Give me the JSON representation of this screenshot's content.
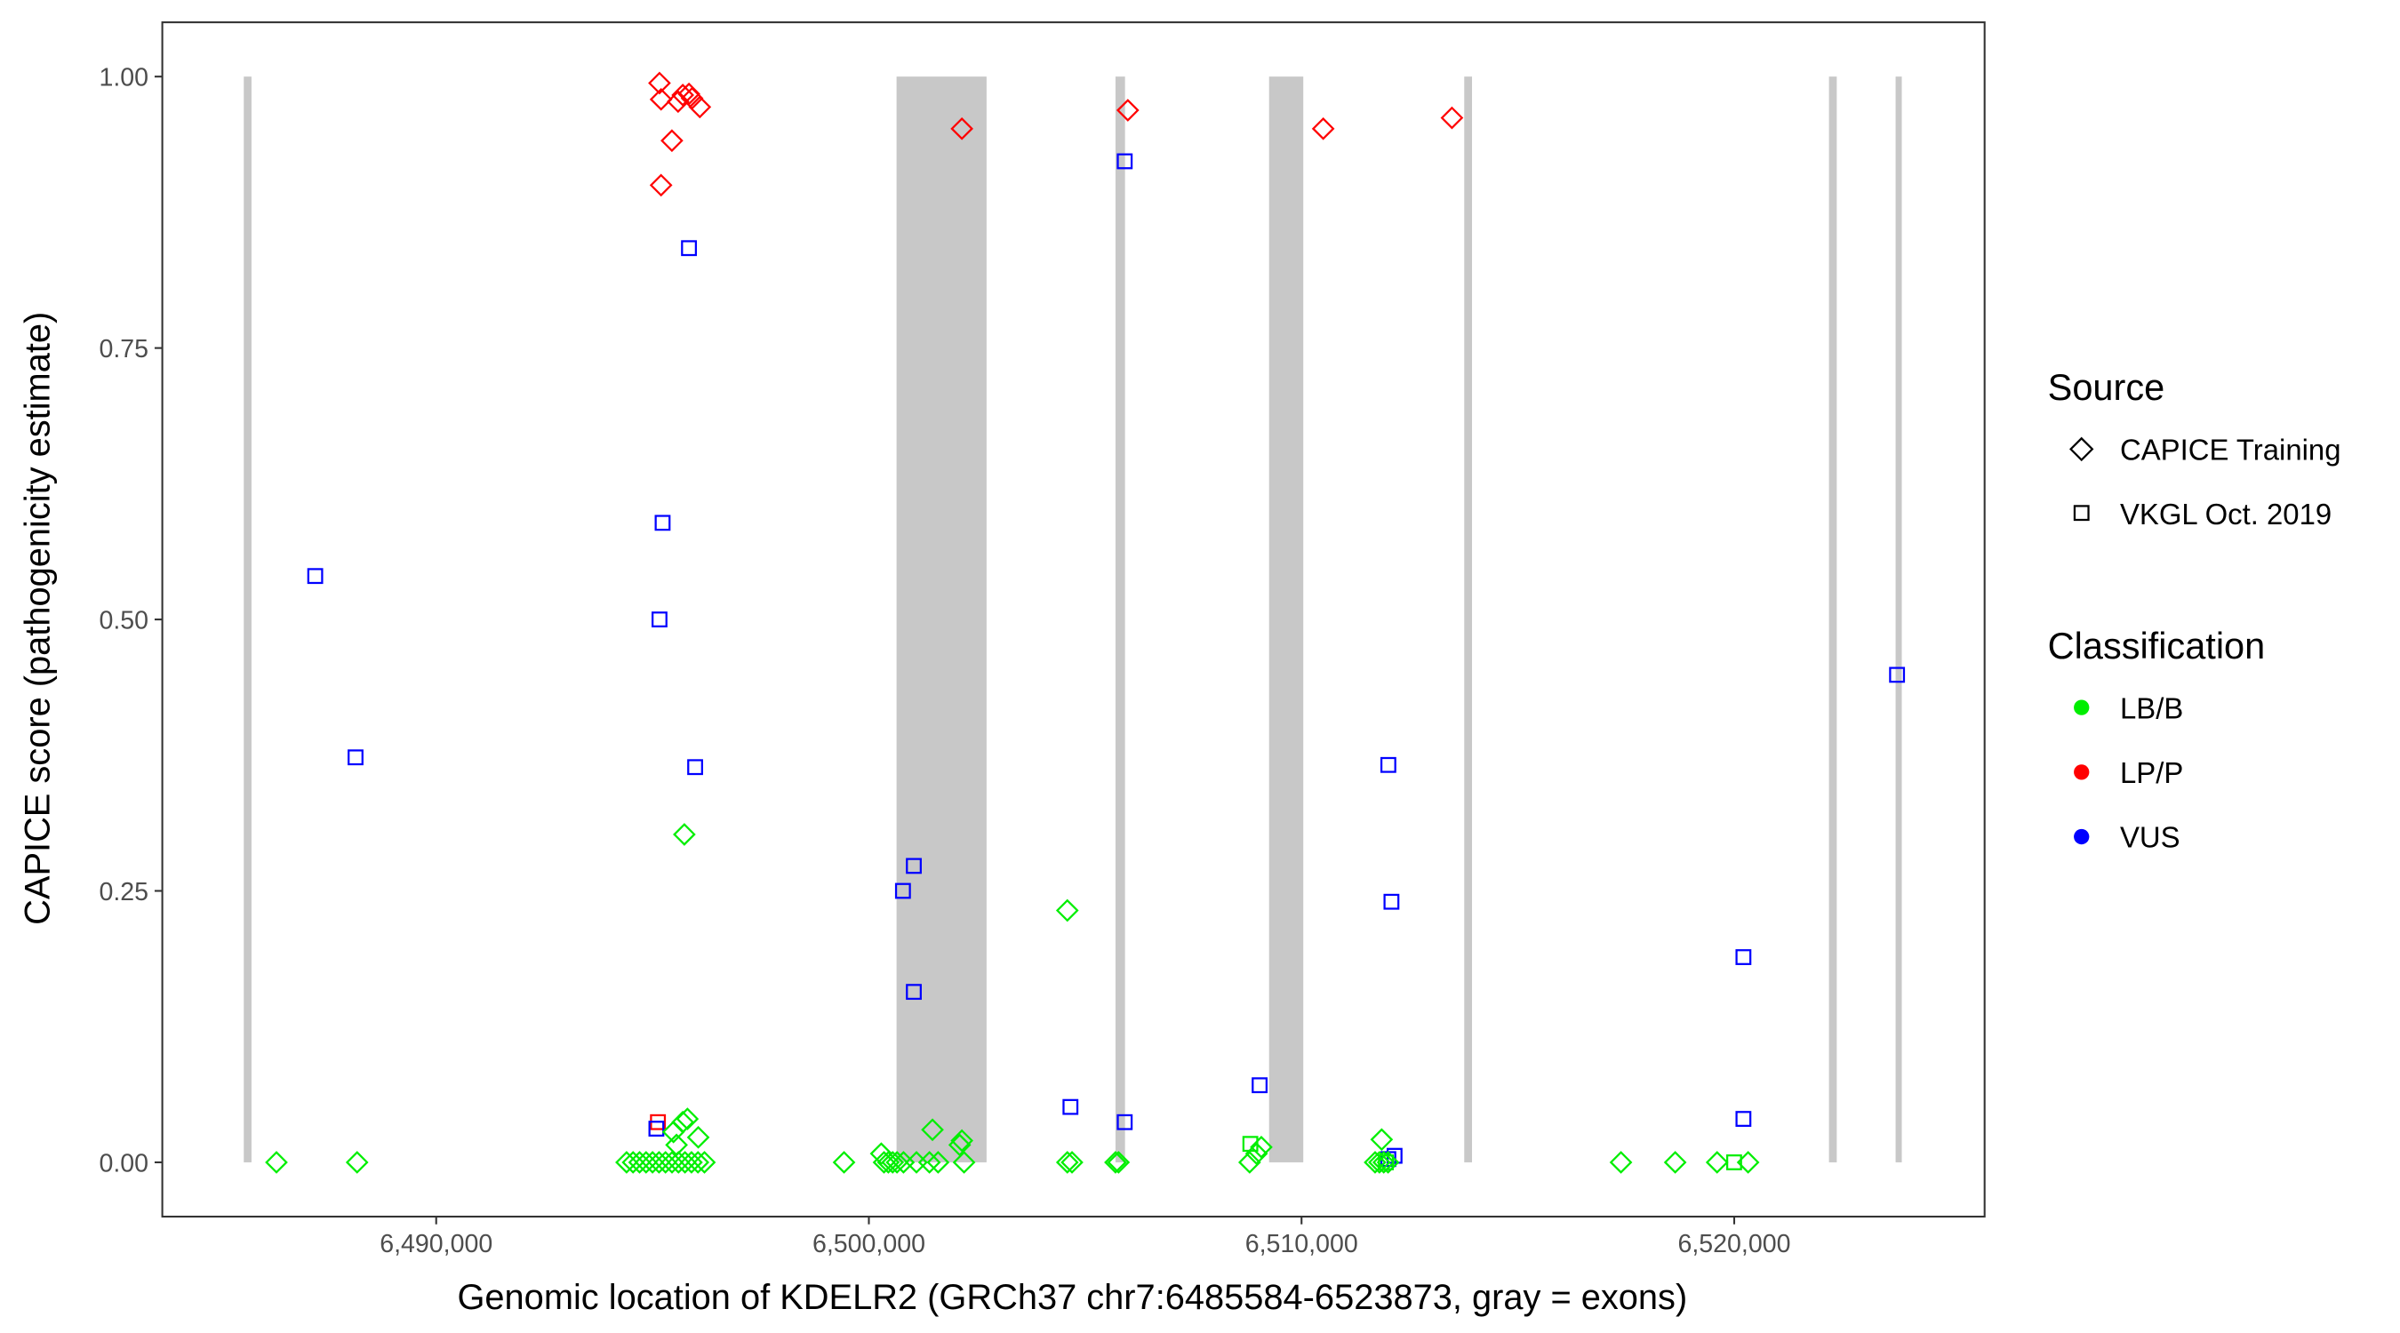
{
  "chart_data": {
    "type": "scatter",
    "title": "",
    "xlabel": "Genomic location of KDELR2 (GRCh37 chr7:6485584-6523873, gray = exons)",
    "ylabel": "CAPICE score (pathogenicity estimate)",
    "xlim": [
      6483670,
      6525787
    ],
    "ylim": [
      -0.05,
      1.05
    ],
    "grid": false,
    "x_ticks": [
      6490000,
      6500000,
      6510000,
      6520000
    ],
    "x_tick_labels": [
      "6,490,000",
      "6,500,000",
      "6,510,000",
      "6,520,000"
    ],
    "y_ticks": [
      0,
      0.25,
      0.5,
      0.75,
      1.0
    ],
    "y_tick_labels": [
      "0.00",
      "0.25",
      "0.50",
      "0.75",
      "1.00"
    ],
    "exons": [
      [
        6485584,
        6485700
      ],
      [
        6500640,
        6502720
      ],
      [
        6505700,
        6505920
      ],
      [
        6509250,
        6510040
      ],
      [
        6513760,
        6513940
      ],
      [
        6522190,
        6522370
      ],
      [
        6523730,
        6523873
      ]
    ],
    "exon_color": "#C8C8C8",
    "legend": {
      "placement": "right",
      "source_title": "Source",
      "sources": [
        {
          "label": "CAPICE Training",
          "shape": "diamond"
        },
        {
          "label": "VKGL Oct. 2019",
          "shape": "square"
        }
      ],
      "classification_title": "Classification",
      "classes": [
        {
          "label": "LB/B",
          "color": "#00EE00"
        },
        {
          "label": "LP/P",
          "color": "#FF0000"
        },
        {
          "label": "VUS",
          "color": "#0000FF"
        }
      ]
    },
    "series": [
      {
        "classification": "LP/P",
        "source": "CAPICE Training",
        "points": [
          [
            6495161,
            0.994
          ],
          [
            6495197,
            0.979
          ],
          [
            6495591,
            0.977
          ],
          [
            6495699,
            0.983
          ],
          [
            6495842,
            0.984
          ],
          [
            6495914,
            0.98
          ],
          [
            6496093,
            0.972
          ],
          [
            6495448,
            0.941
          ],
          [
            6495197,
            0.9
          ],
          [
            6502150,
            0.952
          ],
          [
            6505985,
            0.969
          ],
          [
            6510501,
            0.952
          ],
          [
            6513476,
            0.962
          ]
        ]
      },
      {
        "classification": "LP/P",
        "source": "VKGL Oct. 2019",
        "points": [
          [
            6495125,
            0.037
          ]
        ]
      },
      {
        "classification": "VUS",
        "source": "VKGL Oct. 2019",
        "points": [
          [
            6487204,
            0.54
          ],
          [
            6488136,
            0.373
          ],
          [
            6495842,
            0.842
          ],
          [
            6495233,
            0.589
          ],
          [
            6495161,
            0.5
          ],
          [
            6495985,
            0.364
          ],
          [
            6495089,
            0.031
          ],
          [
            6505913,
            0.922
          ],
          [
            6500788,
            0.25
          ],
          [
            6501039,
            0.273
          ],
          [
            6501039,
            0.157
          ],
          [
            6504659,
            0.051
          ],
          [
            6505913,
            0.037
          ],
          [
            6509031,
            0.071
          ],
          [
            6512006,
            0.366
          ],
          [
            6512078,
            0.24
          ],
          [
            6512006,
            0.003
          ],
          [
            6512150,
            0.006
          ],
          [
            6520213,
            0.189
          ],
          [
            6520213,
            0.04
          ],
          [
            6523763,
            0.449
          ]
        ]
      },
      {
        "classification": "LB/B",
        "source": "CAPICE Training",
        "points": [
          [
            6486308,
            0
          ],
          [
            6488172,
            0
          ],
          [
            6494400,
            0
          ],
          [
            6494550,
            0
          ],
          [
            6494700,
            0
          ],
          [
            6494850,
            0
          ],
          [
            6495000,
            0
          ],
          [
            6495150,
            0
          ],
          [
            6495300,
            0
          ],
          [
            6495450,
            0
          ],
          [
            6495600,
            0
          ],
          [
            6495750,
            0
          ],
          [
            6495900,
            0
          ],
          [
            6496050,
            0
          ],
          [
            6496200,
            0
          ],
          [
            6495735,
            0.302
          ],
          [
            6495699,
            0.037
          ],
          [
            6495806,
            0.04
          ],
          [
            6495484,
            0.028
          ],
          [
            6495555,
            0.016
          ],
          [
            6496057,
            0.023
          ],
          [
            6499426,
            0
          ],
          [
            6500286,
            0.008
          ],
          [
            6500350,
            0
          ],
          [
            6500450,
            0
          ],
          [
            6500550,
            0
          ],
          [
            6500650,
            0
          ],
          [
            6500800,
            0
          ],
          [
            6501100,
            0
          ],
          [
            6501400,
            0
          ],
          [
            6501600,
            0
          ],
          [
            6501470,
            0.03
          ],
          [
            6502100,
            0.016
          ],
          [
            6502150,
            0.02
          ],
          [
            6502200,
            0
          ],
          [
            6504587,
            0.232
          ],
          [
            6504587,
            0
          ],
          [
            6504695,
            0
          ],
          [
            6505700,
            0
          ],
          [
            6505770,
            0
          ],
          [
            6508800,
            0
          ],
          [
            6508960,
            0.008
          ],
          [
            6509070,
            0.014
          ],
          [
            6511852,
            0.021
          ],
          [
            6511700,
            0
          ],
          [
            6511800,
            0
          ],
          [
            6511900,
            0
          ],
          [
            6512000,
            0
          ],
          [
            6517382,
            0
          ],
          [
            6518636,
            0
          ],
          [
            6519604,
            0
          ],
          [
            6520321,
            0
          ]
        ]
      },
      {
        "classification": "LB/B",
        "source": "VKGL Oct. 2019",
        "points": [
          [
            6508817,
            0.017
          ],
          [
            6519998,
            0
          ],
          [
            6511950,
            0
          ]
        ]
      }
    ]
  }
}
